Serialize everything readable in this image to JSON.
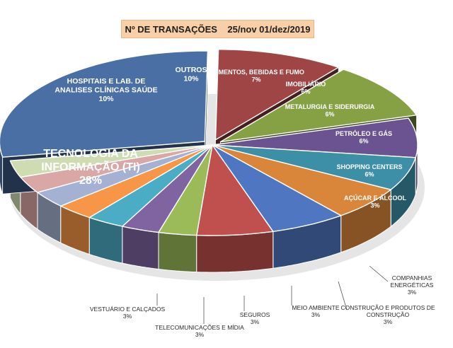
{
  "chart_data": {
    "type": "pie",
    "title": "Nº DE TRANSAÇÕES    25/nov 01/dez/2019",
    "unit": "%",
    "slices": [
      {
        "label": "TECNOLOGIA DA INFORMAÇÃO (TI)",
        "value": 28,
        "value_label": "28%",
        "color": "#4a6fa5"
      },
      {
        "label": "HOSPITAIS E LAB. DE ANALISES CLÍNICAS SAÚDE",
        "value": 10,
        "value_label": "10%",
        "color": "#a04545"
      },
      {
        "label": "OUTROS",
        "value": 10,
        "value_label": "10%",
        "color": "#86a044"
      },
      {
        "label": "ALIMENTOS, BEBIDAS E FUMO",
        "value": 7,
        "value_label": "7%",
        "color": "#6a5390"
      },
      {
        "label": "IMOBILIÁRIO",
        "value": 6,
        "value_label": "6%",
        "color": "#3d8fa8"
      },
      {
        "label": "METALURGIA E SIDERURGIA",
        "value": 6,
        "value_label": "6%",
        "color": "#d9863a"
      },
      {
        "label": "PETRÓLEO E GÁS",
        "value": 6,
        "value_label": "6%",
        "color": "#4f76c0"
      },
      {
        "label": "SHOPPING CENTERS",
        "value": 6,
        "value_label": "6%",
        "color": "#c0504d"
      },
      {
        "label": "AÇÚCAR E ÁLCOOL",
        "value": 3,
        "value_label": "3%",
        "color": "#9bbb59"
      },
      {
        "label": "COMPANHIAS ENERGÉTICAS",
        "value": 3,
        "value_label": "3%",
        "color": "#8064a2"
      },
      {
        "label": "CONSTRUÇÃO E PRODUTOS DE CONSTRUÇÃO",
        "value": 3,
        "value_label": "3%",
        "color": "#4bacc6"
      },
      {
        "label": "MEIO AMBIENTE",
        "value": 3,
        "value_label": "3%",
        "color": "#f79646"
      },
      {
        "label": "SEGUROS",
        "value": 3,
        "value_label": "3%",
        "color": "#a5b1d2"
      },
      {
        "label": "TELECOMUNICAÇÕES E MÍDIA",
        "value": 3,
        "value_label": "3%",
        "color": "#d9a7a6"
      },
      {
        "label": "VESTUÁRIO E CALÇADOS",
        "value": 3,
        "value_label": "3%",
        "color": "#cfdcb2"
      }
    ],
    "legend": "none"
  }
}
